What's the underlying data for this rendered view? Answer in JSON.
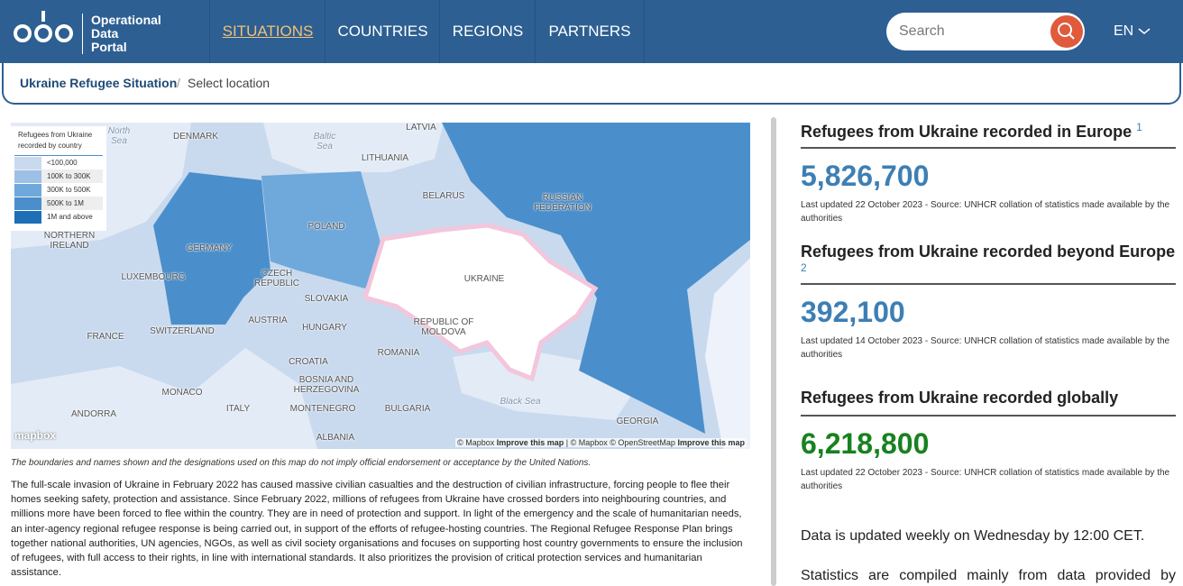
{
  "header": {
    "logo": [
      "Operational",
      "Data",
      "Portal"
    ],
    "nav": [
      "SITUATIONS",
      "COUNTRIES",
      "REGIONS",
      "PARTNERS"
    ],
    "search": "Search",
    "language": "EN"
  },
  "breadcrumb": [
    "Ukraine Refugee Situation",
    "Select location"
  ],
  "map": {
    "legend": {
      "title": "Refugees from Ukraine recorded by country",
      "items": [
        "<100,000",
        "100K to 300K",
        "300K to 500K",
        "500K to 1M",
        "1M and above"
      ]
    },
    "labels": [
      "North Sea",
      "Baltic Sea",
      "DENMARK",
      "LATVIA",
      "LITHUANIA",
      "BELARUS",
      "RUSSIAN FEDERATION",
      "NORTHERN IRELAND",
      "GERMANY",
      "POLAND",
      "LUXEMBOURG",
      "CZECH REPUBLIC",
      "SLOVAKIA",
      "UKRAINE",
      "AUSTRIA",
      "HUNGARY",
      "REPUBLIC OF MOLDOVA",
      "FRANCE",
      "SWITZERLAND",
      "ROMANIA",
      "CROATIA",
      "BOSNIA AND HERZEGOVINA",
      "MONACO",
      "Black Sea",
      "ANDORRA",
      "ITALY",
      "MONTENEGRO",
      "BULGARIA",
      "GEORGIA",
      "ALBANIA"
    ],
    "mapbox": "mapbox",
    "attribution": [
      "© Mapbox",
      "Improve this map",
      "| © Mapbox © OpenStreetMap",
      "Improve this map"
    ],
    "disclaimer": "The boundaries and names shown and the designations used on this map do not imply official endorsement or acceptance by the United Nations."
  },
  "intro": "The full-scale invasion of Ukraine in February 2022 has caused massive civilian casualties and the destruction of civilian infrastructure, forcing people to flee their homes seeking safety, protection and assistance. Since February 2022, millions of refugees from Ukraine have crossed borders into neighbouring countries, and millions more have been forced to flee within the country. They are in need of protection and support. In light of the emergency and the scale of humanitarian needs, an inter-agency regional refugee response is being carried out, in support of the efforts of refugee-hosting countries. The Regional Refugee Response Plan brings together national authorities, UN agencies, NGOs, as well as civil society organisations and focuses on supporting host country governments to ensure the inclusion of refugees, with full access to their rights, in line with international standards. It also prioritizes the provision of critical protection services and humanitarian assistance.",
  "stats": [
    {
      "title": "Refugees from Ukraine recorded in Europe",
      "note": "1",
      "value": "5,826,700",
      "updated": "Last updated 22 October 2023 - Source: UNHCR collation of statistics made available by the authorities"
    },
    {
      "title": "Refugees from Ukraine recorded beyond Europe",
      "note": "2",
      "value": "392,100",
      "updated": "Last updated 14 October 2023 - Source: UNHCR collation of statistics made available by the authorities"
    },
    {
      "title": "Refugees from Ukraine recorded globally",
      "value": "6,218,800",
      "updated": "Last updated 22 October 2023 - Source: UNHCR collation of statistics made available by the authorities"
    }
  ],
  "notes": [
    "Data is updated weekly on Wednesday by 12:00 CET.",
    "Statistics are compiled mainly from data provided by"
  ]
}
